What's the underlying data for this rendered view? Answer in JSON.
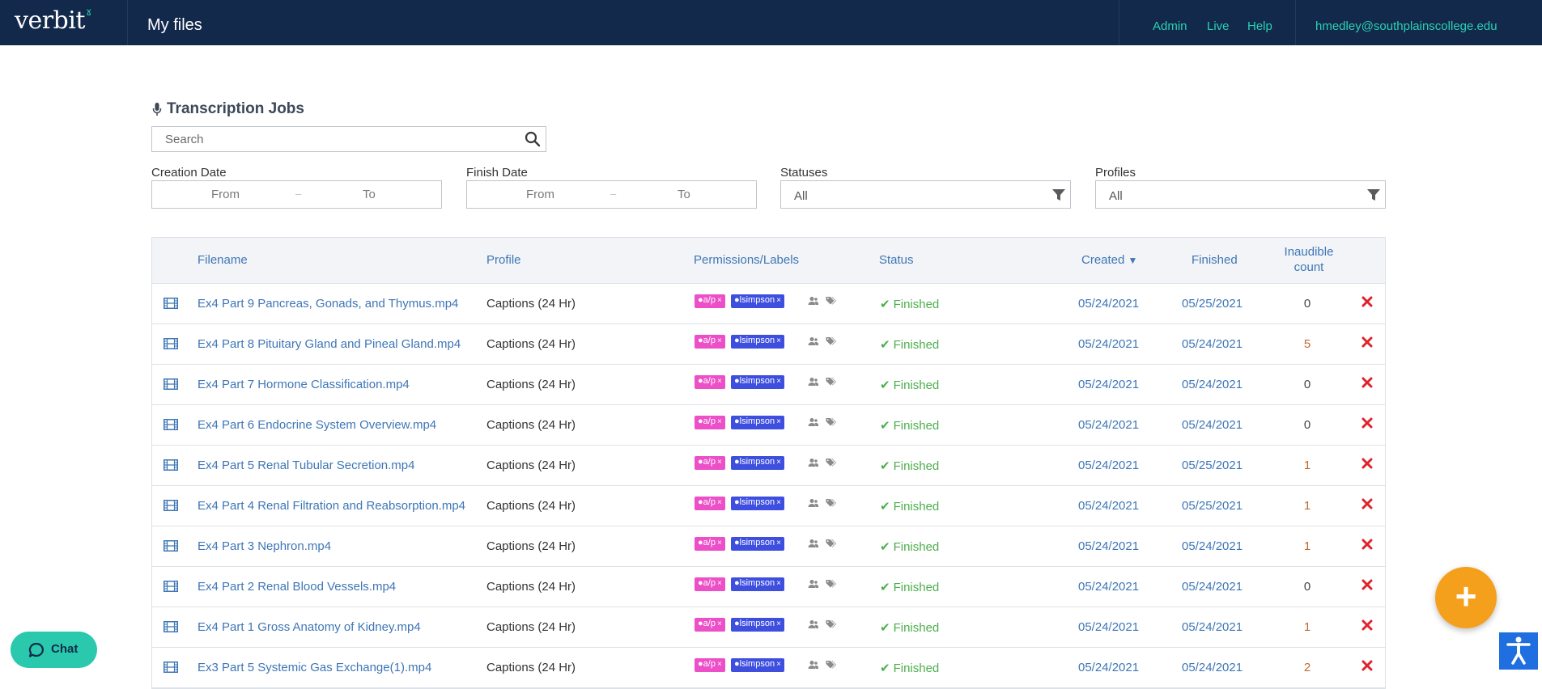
{
  "brand": {
    "name": "verbit",
    "accent": "#2ad1b4",
    "nav_bg": "#13294b"
  },
  "header": {
    "page_title": "My files",
    "links": [
      "Admin",
      "Live",
      "Help"
    ],
    "user_email": "hmedley@southplainscollege.edu"
  },
  "section": {
    "title": "Transcription Jobs"
  },
  "search": {
    "placeholder": "Search"
  },
  "filters": {
    "creation_date": {
      "label": "Creation Date",
      "from": "From",
      "dash": "–",
      "to": "To"
    },
    "finish_date": {
      "label": "Finish Date",
      "from": "From",
      "dash": "–",
      "to": "To"
    },
    "statuses": {
      "label": "Statuses",
      "value": "All"
    },
    "profiles": {
      "label": "Profiles",
      "value": "All"
    }
  },
  "table": {
    "headers": {
      "filename": "Filename",
      "profile": "Profile",
      "permissions": "Permissions/Labels",
      "status": "Status",
      "created": "Created",
      "sort_arrow": "▼",
      "finished": "Finished",
      "inaudible_1": "Inaudible",
      "inaudible_2": "count"
    },
    "rows": [
      {
        "filename": "Ex4 Part 9 Pancreas, Gonads, and Thymus.mp4",
        "profile": "Captions (24 Hr)",
        "label_a": "a/p",
        "label_b": "lsimpson",
        "status": "Finished",
        "created": "05/24/2021",
        "finished": "05/25/2021",
        "inaudible": "0"
      },
      {
        "filename": "Ex4 Part 8 Pituitary Gland and Pineal Gland.mp4",
        "profile": "Captions (24 Hr)",
        "label_a": "a/p",
        "label_b": "lsimpson",
        "status": "Finished",
        "created": "05/24/2021",
        "finished": "05/24/2021",
        "inaudible": "5"
      },
      {
        "filename": "Ex4 Part 7 Hormone Classification.mp4",
        "profile": "Captions (24 Hr)",
        "label_a": "a/p",
        "label_b": "lsimpson",
        "status": "Finished",
        "created": "05/24/2021",
        "finished": "05/24/2021",
        "inaudible": "0"
      },
      {
        "filename": "Ex4 Part 6 Endocrine System Overview.mp4",
        "profile": "Captions (24 Hr)",
        "label_a": "a/p",
        "label_b": "lsimpson",
        "status": "Finished",
        "created": "05/24/2021",
        "finished": "05/24/2021",
        "inaudible": "0"
      },
      {
        "filename": "Ex4 Part 5 Renal Tubular Secretion.mp4",
        "profile": "Captions (24 Hr)",
        "label_a": "a/p",
        "label_b": "lsimpson",
        "status": "Finished",
        "created": "05/24/2021",
        "finished": "05/25/2021",
        "inaudible": "1"
      },
      {
        "filename": "Ex4 Part 4 Renal Filtration and Reabsorption.mp4",
        "profile": "Captions (24 Hr)",
        "label_a": "a/p",
        "label_b": "lsimpson",
        "status": "Finished",
        "created": "05/24/2021",
        "finished": "05/25/2021",
        "inaudible": "1"
      },
      {
        "filename": "Ex4 Part 3 Nephron.mp4",
        "profile": "Captions (24 Hr)",
        "label_a": "a/p",
        "label_b": "lsimpson",
        "status": "Finished",
        "created": "05/24/2021",
        "finished": "05/24/2021",
        "inaudible": "1"
      },
      {
        "filename": "Ex4 Part 2 Renal Blood Vessels.mp4",
        "profile": "Captions (24 Hr)",
        "label_a": "a/p",
        "label_b": "lsimpson",
        "status": "Finished",
        "created": "05/24/2021",
        "finished": "05/24/2021",
        "inaudible": "0"
      },
      {
        "filename": "Ex4 Part 1 Gross Anatomy of Kidney.mp4",
        "profile": "Captions (24 Hr)",
        "label_a": "a/p",
        "label_b": "lsimpson",
        "status": "Finished",
        "created": "05/24/2021",
        "finished": "05/24/2021",
        "inaudible": "1"
      },
      {
        "filename": "Ex3 Part 5 Systemic Gas Exchange(1).mp4",
        "profile": "Captions (24 Hr)",
        "label_a": "a/p",
        "label_b": "lsimpson",
        "status": "Finished",
        "created": "05/24/2021",
        "finished": "05/24/2021",
        "inaudible": "2"
      }
    ]
  },
  "chat": {
    "label": "Chat"
  },
  "icons": {
    "film": "film-icon",
    "check": "check-icon",
    "delete": "close-icon",
    "user_perm": "users-icon",
    "label_perm": "tags-icon",
    "fab": "plus-icon",
    "accessibility": "accessibility-icon"
  },
  "colors": {
    "finished_green": "#4cae4c",
    "link_blue": "#3e76b6",
    "label_pink": "#ec4fc7",
    "label_blue": "#3e4fe0",
    "fab_orange": "#f5a01c",
    "chat_teal": "#2ac9ad",
    "delete_red": "#e0222b"
  }
}
